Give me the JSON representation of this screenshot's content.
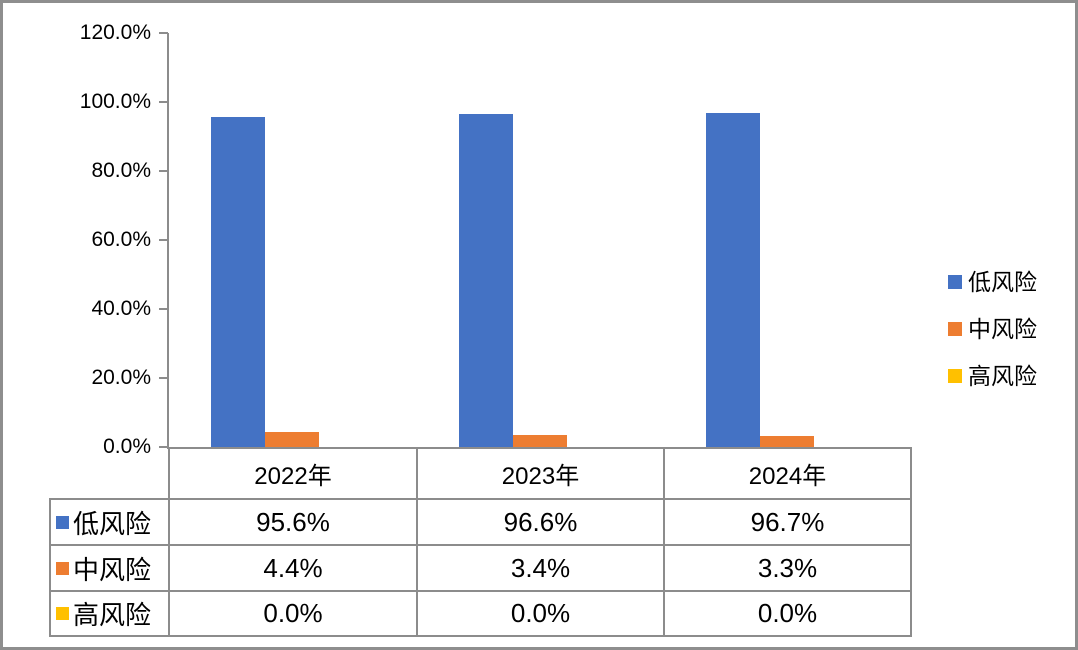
{
  "chart_data": {
    "type": "bar",
    "title": "",
    "xlabel": "",
    "ylabel": "",
    "categories": [
      "2022年",
      "2023年",
      "2024年"
    ],
    "series": [
      {
        "name": "低风险",
        "color": "#4472C4",
        "values": [
          95.6,
          96.6,
          96.7
        ],
        "value_labels": [
          "95.6%",
          "96.6%",
          "96.7%"
        ]
      },
      {
        "name": "中风险",
        "color": "#ED7D31",
        "values": [
          4.4,
          3.4,
          3.3
        ],
        "value_labels": [
          "4.4%",
          "3.4%",
          "3.3%"
        ]
      },
      {
        "name": "高风险",
        "color": "#FFC000",
        "values": [
          0.0,
          0.0,
          0.0
        ],
        "value_labels": [
          "0.0%",
          "0.0%",
          "0.0%"
        ]
      }
    ],
    "ylim": [
      0,
      120
    ],
    "ytick_step": 20,
    "ytick_labels": [
      "0.0%",
      "20.0%",
      "40.0%",
      "60.0%",
      "80.0%",
      "100.0%",
      "120.0%"
    ],
    "grid": false,
    "legend_position": "right",
    "legend_entries": [
      "低风险",
      "中风险",
      "高风险"
    ],
    "data_table_shown": true,
    "axis_color": "#8C8C8C",
    "background_color": "#FFFFFF",
    "border_color": "#8E8E8E"
  }
}
